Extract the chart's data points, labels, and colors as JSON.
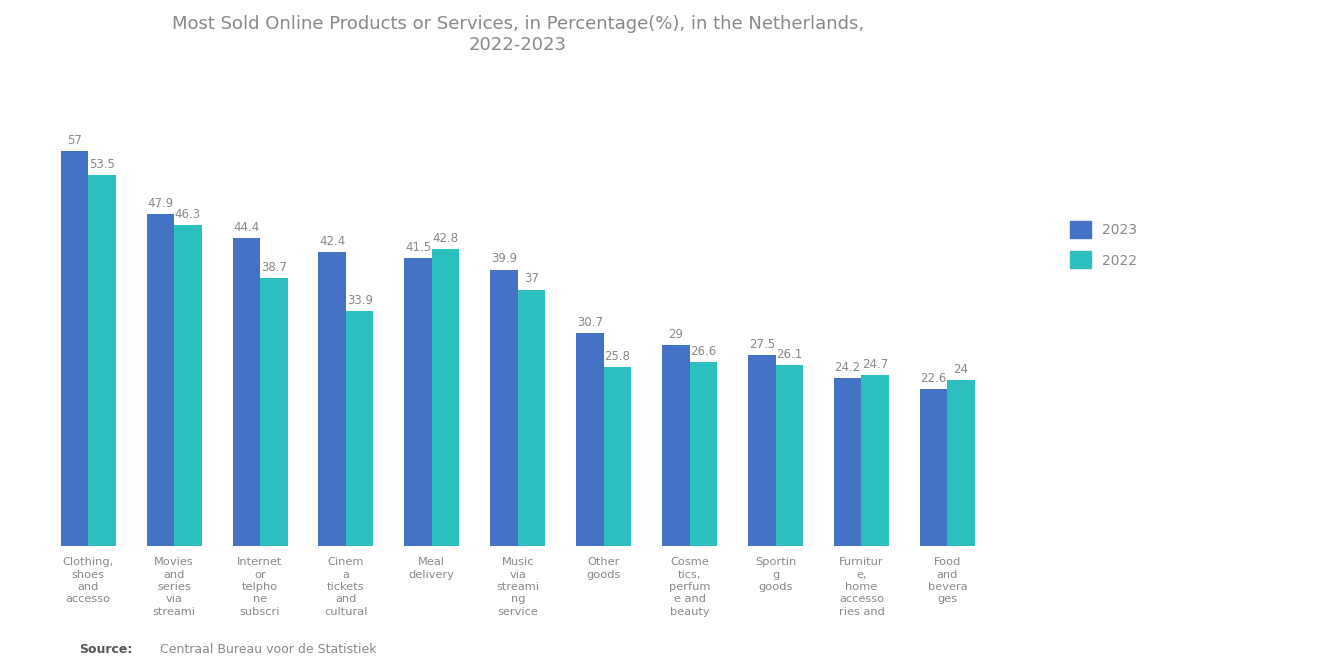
{
  "title": "Most Sold Online Products or Services, in Percentage(%), in the Netherlands,\n2022-2023",
  "categories": [
    "Clothing,\nshoes\nand\naccesso",
    "Movies\nand\nseries\nvia\nstreami",
    "Internet\nor\ntelpho\nne\nsubscri",
    "Cinem\na\ntickets\nand\ncultural",
    "Meal\ndelivery",
    "Music\nvia\nstreami\nng\nservice",
    "Other\ngoods",
    "Cosme\ntics,\nperfum\ne and\nbeauty",
    "Sportin\ng\ngoods",
    "Furnitur\ne,\nhome\naccesso\nries and",
    "Food\nand\nbevera\nges"
  ],
  "values_2023": [
    57,
    47.9,
    44.4,
    42.4,
    41.5,
    39.9,
    30.7,
    29,
    27.5,
    24.2,
    22.6
  ],
  "values_2022": [
    53.5,
    46.3,
    38.7,
    33.9,
    42.8,
    37,
    25.8,
    26.6,
    26.1,
    24.7,
    24
  ],
  "labels_2023": [
    "57",
    "47.9",
    "44.4",
    "42.4",
    "41.5",
    "39.9",
    "30.7",
    "29",
    "27.5",
    "24.2",
    "22.6"
  ],
  "labels_2022": [
    "53.5",
    "46.3",
    "38.7",
    "33.9",
    "42.8",
    "37",
    "25.8",
    "26.6",
    "26.1",
    "24.7",
    "24"
  ],
  "color_2023": "#4472c4",
  "color_2022": "#2bbfbf",
  "background_color": "#ffffff",
  "source_bold": "Source:",
  "source_rest": "  Centraal Bureau voor de Statistiek",
  "legend_2023": "2023",
  "legend_2022": "2022",
  "ylim": [
    0,
    68
  ],
  "bar_width": 0.32,
  "label_fontsize": 8.5,
  "label_color": "#888888",
  "tick_label_fontsize": 8.2,
  "tick_label_color": "#888888",
  "title_fontsize": 13,
  "title_color": "#888888"
}
